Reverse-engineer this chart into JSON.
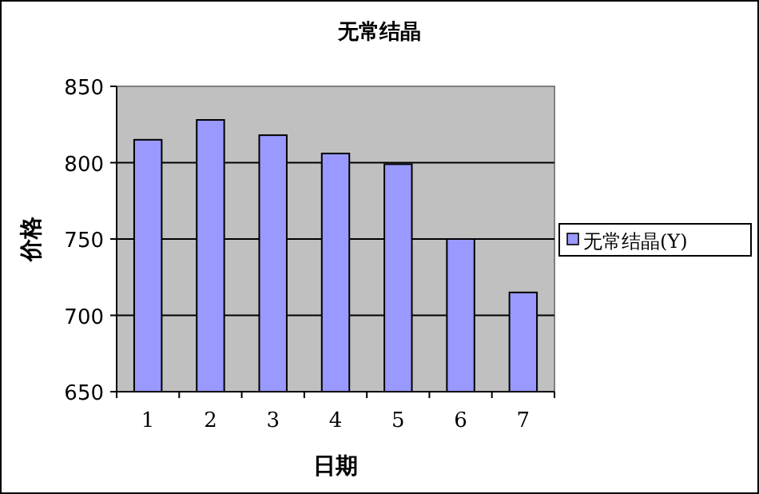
{
  "chart_data": {
    "type": "bar",
    "title": "无常结晶",
    "xlabel": "日期",
    "ylabel": "价格",
    "categories": [
      "1",
      "2",
      "3",
      "4",
      "5",
      "6",
      "7"
    ],
    "series": [
      {
        "name": "无常结晶(Y)",
        "color": "#9999ff",
        "values": [
          815,
          828,
          818,
          806,
          799,
          750,
          715
        ]
      }
    ],
    "ylim": [
      650,
      850
    ],
    "yticks": [
      650,
      700,
      750,
      800,
      850
    ],
    "grid": "y",
    "legend": "right"
  }
}
